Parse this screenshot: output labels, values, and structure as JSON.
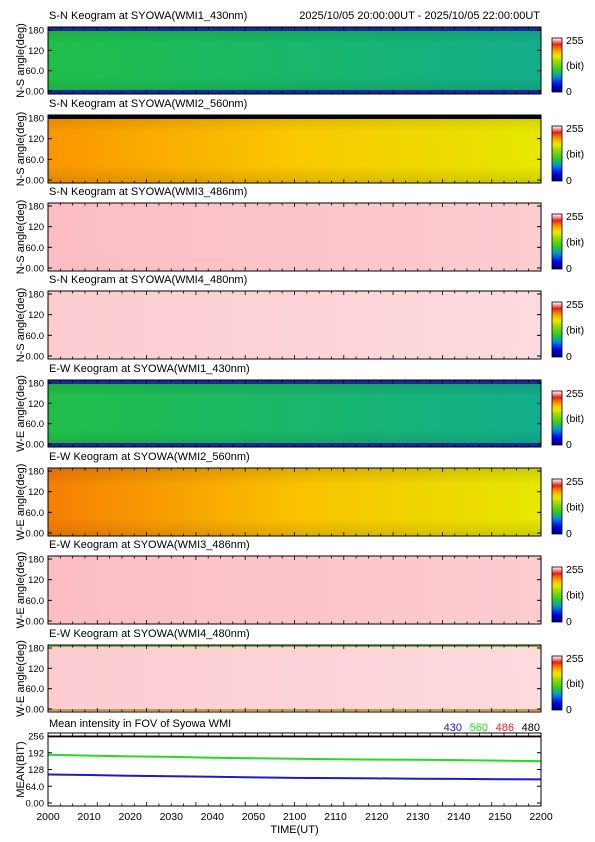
{
  "header": {
    "time_range": "2025/10/05 20:00:00UT - 2025/10/05 22:00:00UT"
  },
  "colorbar": {
    "max_label": "255",
    "unit_label": "(bit)",
    "min_label": "0"
  },
  "chart_data": [
    {
      "type": "heatmap",
      "title": "S-N Keogram at SYOWA(WMI1_430nm)",
      "ylabel": "N-S angle(deg)",
      "yticks": [
        "180",
        "120",
        "60.0",
        "0.00"
      ],
      "ylim": [
        0,
        180
      ],
      "xlim": [
        "2000",
        "2200"
      ],
      "colormap": "blue-green-yellow-red-white, 0-255",
      "approx_level_start": 95,
      "approx_level_end": 85,
      "top_edge": "dark-blue band",
      "bottom_edge": "dark-blue band"
    },
    {
      "type": "heatmap",
      "title": "S-N Keogram at SYOWA(WMI2_560nm)",
      "ylabel": "N-S angle(deg)",
      "yticks": [
        "180",
        "120",
        "60.0",
        "0.00"
      ],
      "ylim": [
        0,
        180
      ],
      "xlim": [
        "2000",
        "2200"
      ],
      "approx_level_start": 200,
      "approx_level_end": 165,
      "top_edge": "black band",
      "bottom_edge": "none"
    },
    {
      "type": "heatmap",
      "title": "S-N Keogram at SYOWA(WMI3_486nm)",
      "ylabel": "N-S angle(deg)",
      "yticks": [
        "180",
        "120",
        "60.0",
        "0.00"
      ],
      "ylim": [
        0,
        180
      ],
      "xlim": [
        "2000",
        "2200"
      ],
      "approx_level": 248,
      "saturated": true
    },
    {
      "type": "heatmap",
      "title": "S-N Keogram at SYOWA(WMI4_480nm)",
      "ylabel": "N-S angle(deg)",
      "yticks": [
        "180",
        "120",
        "60.0",
        "0.00"
      ],
      "ylim": [
        0,
        180
      ],
      "xlim": [
        "2000",
        "2200"
      ],
      "approx_level": 250,
      "saturated": true
    },
    {
      "type": "heatmap",
      "title": "E-W Keogram at SYOWA(WMI1_430nm)",
      "ylabel": "W-E angle(deg)",
      "yticks": [
        "180",
        "120",
        "60.0",
        "0.00"
      ],
      "ylim": [
        0,
        180
      ],
      "xlim": [
        "2000",
        "2200"
      ],
      "approx_level_start": 95,
      "approx_level_end": 85,
      "top_edge": "dark-blue band",
      "bottom_edge": "dark-blue band"
    },
    {
      "type": "heatmap",
      "title": "E-W Keogram at SYOWA(WMI2_560nm)",
      "ylabel": "W-E angle(deg)",
      "yticks": [
        "180",
        "120",
        "60.0",
        "0.00"
      ],
      "ylim": [
        0,
        180
      ],
      "xlim": [
        "2000",
        "2200"
      ],
      "approx_level_start": 205,
      "approx_level_end": 165
    },
    {
      "type": "heatmap",
      "title": "E-W Keogram at SYOWA(WMI3_486nm)",
      "ylabel": "W-E angle(deg)",
      "yticks": [
        "180",
        "120",
        "60.0",
        "0.00"
      ],
      "ylim": [
        0,
        180
      ],
      "xlim": [
        "2000",
        "2200"
      ],
      "approx_level": 248,
      "saturated": true
    },
    {
      "type": "heatmap",
      "title": "E-W Keogram at SYOWA(WMI4_480nm)",
      "ylabel": "W-E angle(deg)",
      "yticks": [
        "180",
        "120",
        "60.0",
        "0.00"
      ],
      "ylim": [
        0,
        180
      ],
      "xlim": [
        "2000",
        "2200"
      ],
      "approx_level": 250,
      "saturated": true,
      "top_edge": "green/red line",
      "bottom_edge": "green/red line"
    },
    {
      "type": "line",
      "title": "Mean intensity in FOV of Syowa WMI",
      "ylabel": "MEAN(BIT)",
      "xlabel": "TIME(UT)",
      "xticks": [
        "2000",
        "2010",
        "2020",
        "2030",
        "2040",
        "2050",
        "2100",
        "2110",
        "2120",
        "2130",
        "2140",
        "2150",
        "2200"
      ],
      "yticks": [
        "256",
        "192",
        "128",
        "64.0",
        "0.00"
      ],
      "ylim": [
        0,
        256
      ],
      "series": [
        {
          "name": "430",
          "color": "#1a1ad0",
          "x": [
            0,
            10,
            20,
            30,
            40,
            50,
            60,
            70,
            80,
            90,
            100,
            110,
            120
          ],
          "values": [
            109,
            107,
            104,
            102,
            100,
            98,
            96,
            95,
            94,
            93,
            92,
            91,
            90
          ]
        },
        {
          "name": "560",
          "color": "#22dd22",
          "x": [
            0,
            10,
            20,
            30,
            40,
            50,
            60,
            70,
            80,
            90,
            100,
            110,
            120
          ],
          "values": [
            184,
            181,
            178,
            176,
            173,
            171,
            169,
            167,
            166,
            165,
            164,
            162,
            160
          ]
        },
        {
          "name": "486",
          "color": "#dd2222",
          "x": [
            0,
            10,
            20,
            30,
            40,
            50,
            60,
            70,
            80,
            90,
            100,
            110,
            120
          ],
          "values": [
            254,
            254,
            254,
            254,
            254,
            254,
            254,
            254,
            254,
            254,
            254,
            254,
            254
          ]
        },
        {
          "name": "480",
          "color": "#000000",
          "x": [
            0,
            10,
            20,
            30,
            40,
            50,
            60,
            70,
            80,
            90,
            100,
            110,
            120
          ],
          "values": [
            255,
            255,
            255,
            255,
            255,
            255,
            255,
            255,
            255,
            255,
            255,
            255,
            255
          ]
        }
      ]
    }
  ]
}
